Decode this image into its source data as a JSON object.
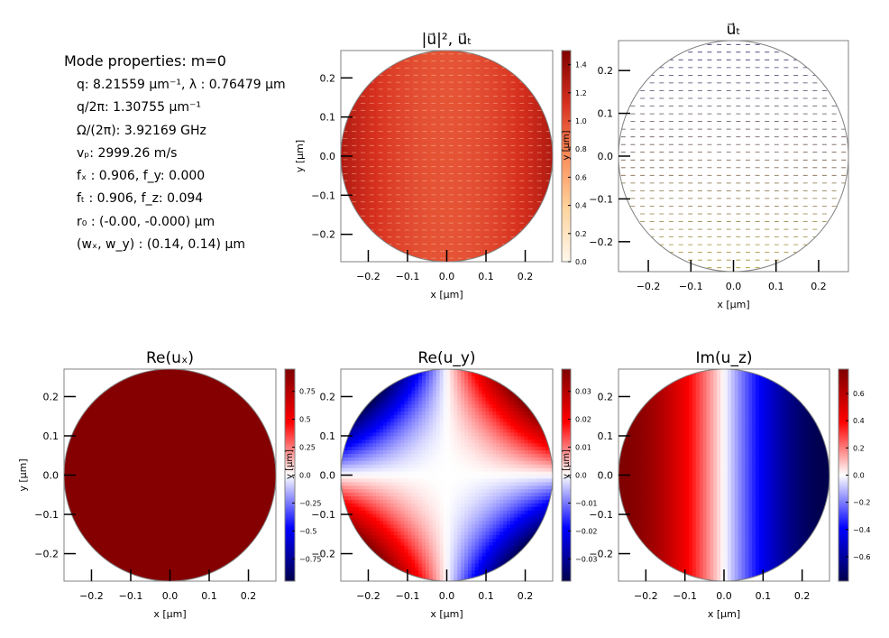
{
  "properties": {
    "title": "Mode properties: m=0",
    "lines": [
      "q: 8.21559 µm⁻¹, λ :  0.76479 µm",
      "q/2π: 1.30755 µm⁻¹",
      "Ω/(2π): 3.92169 GHz",
      "vₚ: 2999.26 m/s",
      "fₓ :  0.906, f_y: 0.000",
      "fₜ :  0.906, f_z: 0.094",
      "r₀ :  (-0.00, -0.000) µm",
      "(wₓ, w_y) :  (0.14, 0.14) µm"
    ]
  },
  "chart_data": [
    {
      "type": "heatmap",
      "title": "|u⃗|², u⃗ₜ",
      "field": "intensity",
      "colormap": "OrRd",
      "xlabel": "x [µm]",
      "ylabel": "y [µm]",
      "xlim": [
        -0.27,
        0.27
      ],
      "ylim": [
        -0.27,
        0.27
      ],
      "xticks": [
        -0.2,
        -0.1,
        0.0,
        0.1,
        0.2
      ],
      "yticks": [
        -0.2,
        -0.1,
        0.0,
        0.1,
        0.2
      ],
      "colorbar": {
        "range": [
          0.0,
          1.5
        ],
        "ticks": [
          0.0,
          0.2,
          0.4,
          0.6,
          0.8,
          1.0,
          1.2,
          1.4
        ],
        "label": "y [µm]"
      },
      "overlay": "transverse-arrows"
    },
    {
      "type": "scatter",
      "title": "u⃗ₜ",
      "field": "vector-arrows",
      "xlabel": "x [µm]",
      "ylabel": "",
      "xlim": [
        -0.27,
        0.27
      ],
      "ylim": [
        -0.27,
        0.27
      ],
      "xticks": [
        -0.2,
        -0.1,
        0.0,
        0.1,
        0.2
      ],
      "yticks": [
        -0.2,
        -0.1,
        0.0,
        0.1,
        0.2
      ]
    },
    {
      "type": "heatmap",
      "title": "Re(uₓ)",
      "field": "re_ux",
      "colormap": "seismic",
      "xlabel": "x [µm]",
      "ylabel": "y [µm]",
      "xlim": [
        -0.27,
        0.27
      ],
      "ylim": [
        -0.27,
        0.27
      ],
      "xticks": [
        -0.2,
        -0.1,
        0.0,
        0.1,
        0.2
      ],
      "yticks": [
        -0.2,
        -0.1,
        0.0,
        0.1,
        0.2
      ],
      "colorbar": {
        "range": [
          -0.95,
          0.95
        ],
        "ticks": [
          -0.75,
          -0.5,
          -0.25,
          0.0,
          0.25,
          0.5,
          0.75
        ],
        "label": "y [µm]"
      }
    },
    {
      "type": "heatmap",
      "title": "Re(u_y)",
      "field": "re_uy",
      "colormap": "seismic",
      "xlabel": "x [µm]",
      "ylabel": "",
      "xlim": [
        -0.27,
        0.27
      ],
      "ylim": [
        -0.27,
        0.27
      ],
      "xticks": [
        -0.2,
        -0.1,
        0.0,
        0.1,
        0.2
      ],
      "yticks": [
        -0.2,
        -0.1,
        0.0,
        0.1,
        0.2
      ],
      "colorbar": {
        "range": [
          -0.038,
          0.038
        ],
        "ticks": [
          -0.03,
          -0.02,
          -0.01,
          0.0,
          0.01,
          0.02,
          0.03
        ],
        "label": "y [µm]"
      }
    },
    {
      "type": "heatmap",
      "title": "Im(u_z)",
      "field": "im_uz",
      "colormap": "seismic",
      "xlabel": "x [µm]",
      "ylabel": "",
      "xlim": [
        -0.27,
        0.27
      ],
      "ylim": [
        -0.27,
        0.27
      ],
      "xticks": [
        -0.2,
        -0.1,
        0.0,
        0.1,
        0.2
      ],
      "yticks": [
        -0.2,
        -0.1,
        0.0,
        0.1,
        0.2
      ],
      "colorbar": {
        "range": [
          -0.78,
          0.78
        ],
        "ticks": [
          -0.6,
          -0.4,
          -0.2,
          0.0,
          0.2,
          0.4,
          0.6
        ]
      }
    }
  ]
}
